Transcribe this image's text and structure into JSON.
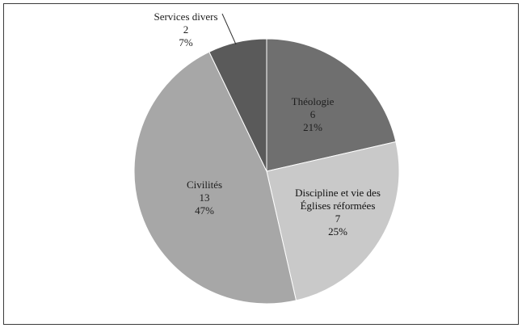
{
  "chart_data": {
    "type": "pie",
    "title": "",
    "slices": [
      {
        "label": "Théologie",
        "label_lines": [
          "Théologie"
        ],
        "count": 6,
        "percent": "21%",
        "value": 6,
        "color": "#6f6f6f"
      },
      {
        "label": "Discipline et vie des Églises réformées",
        "label_lines": [
          "Discipline et vie des",
          "Églises réformées"
        ],
        "count": 7,
        "percent": "25%",
        "value": 7,
        "color": "#c9c9c9"
      },
      {
        "label": "Civilités",
        "label_lines": [
          "Civilités"
        ],
        "count": 13,
        "percent": "47%",
        "value": 13,
        "color": "#a7a7a7"
      },
      {
        "label": "Services divers",
        "label_lines": [
          "Services divers"
        ],
        "count": 2,
        "percent": "7%",
        "value": 2,
        "color": "#5a5a5a"
      }
    ]
  }
}
